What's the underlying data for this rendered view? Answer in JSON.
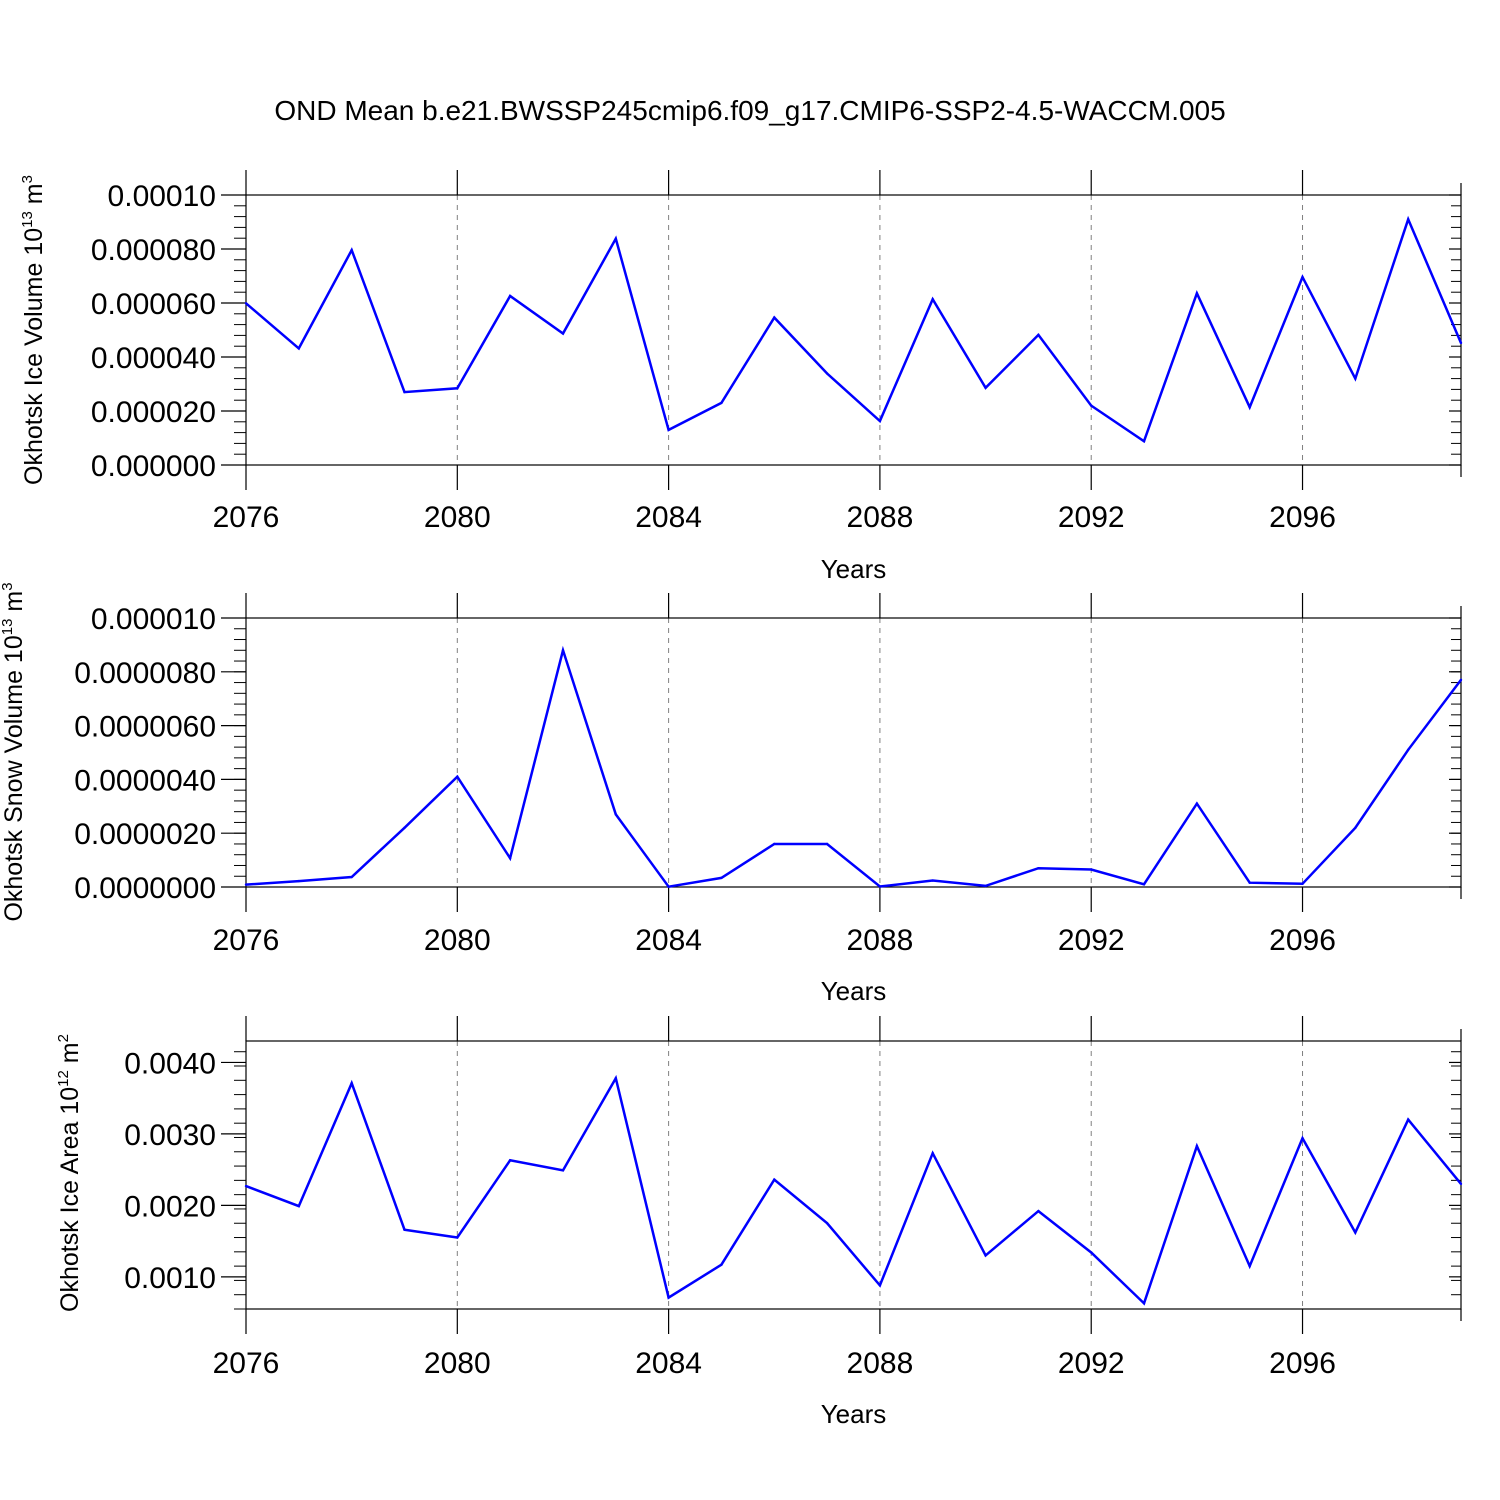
{
  "title": "OND Mean b.e21.BWSSP245cmip6.f09_g17.CMIP6-SSP2-4.5-WACCM.005",
  "colors": {
    "line": "#0000ff",
    "axis": "#000000",
    "grid": "#808080"
  },
  "chart_data": [
    {
      "type": "line",
      "name": "ice-volume",
      "xlabel": "Years",
      "ylabel": {
        "text": "Okhotsk Ice Volume 10",
        "sup": "13",
        "unit": " m",
        "unit_sup": "3"
      },
      "xlim": [
        2076,
        2099
      ],
      "ylim": [
        0,
        0.0001
      ],
      "x_ticks": [
        2076,
        2080,
        2084,
        2088,
        2092,
        2096
      ],
      "x_tick_labels": [
        "2076",
        "2080",
        "2084",
        "2088",
        "2092",
        "2096"
      ],
      "y_ticks": [
        0,
        2e-05,
        4e-05,
        6e-05,
        8e-05,
        0.0001
      ],
      "y_tick_labels": [
        "0.000000",
        "0.000020",
        "0.000040",
        "0.000060",
        "0.000080",
        "0.00010"
      ],
      "x": [
        2076,
        2077,
        2078,
        2079,
        2080,
        2081,
        2082,
        2083,
        2084,
        2085,
        2086,
        2087,
        2088,
        2089,
        2090,
        2091,
        2092,
        2093,
        2094,
        2095,
        2096,
        2097,
        2098,
        2099
      ],
      "values": [
        5.99e-05,
        4.32e-05,
        7.96e-05,
        2.7e-05,
        2.84e-05,
        6.26e-05,
        4.87e-05,
        8.38e-05,
        1.3e-05,
        2.3e-05,
        5.46e-05,
        3.39e-05,
        1.63e-05,
        6.14e-05,
        2.86e-05,
        4.82e-05,
        2.2e-05,
        8.8e-06,
        6.36e-05,
        2.14e-05,
        6.96e-05,
        3.2e-05,
        9.1e-05,
        4.52e-05
      ]
    },
    {
      "type": "line",
      "name": "snow-volume",
      "xlabel": "Years",
      "ylabel": {
        "text": "Okhotsk Snow Volume 10",
        "sup": "13",
        "unit": " m",
        "unit_sup": "3"
      },
      "xlim": [
        2076,
        2099
      ],
      "ylim": [
        0,
        1e-05
      ],
      "x_ticks": [
        2076,
        2080,
        2084,
        2088,
        2092,
        2096
      ],
      "x_tick_labels": [
        "2076",
        "2080",
        "2084",
        "2088",
        "2092",
        "2096"
      ],
      "y_ticks": [
        0,
        2e-06,
        4e-06,
        6e-06,
        8e-06,
        1e-05
      ],
      "y_tick_labels": [
        "0.0000000",
        "0.0000020",
        "0.0000040",
        "0.0000060",
        "0.0000080",
        "0.000010"
      ],
      "x": [
        2076,
        2077,
        2078,
        2079,
        2080,
        2081,
        2082,
        2083,
        2084,
        2085,
        2086,
        2087,
        2088,
        2089,
        2090,
        2091,
        2092,
        2093,
        2094,
        2095,
        2096,
        2097,
        2098,
        2099
      ],
      "values": [
        9e-08,
        2.2e-07,
        3.7e-07,
        2.2e-06,
        4.1e-06,
        1.07e-06,
        8.8e-06,
        2.7e-06,
        1e-08,
        3.4e-07,
        1.6e-06,
        1.6e-06,
        2e-08,
        2.4e-07,
        4e-08,
        7e-07,
        6.5e-07,
        1e-07,
        3.1e-06,
        1.6e-07,
        1.2e-07,
        2.2e-06,
        5.1e-06,
        7.7e-06
      ]
    },
    {
      "type": "line",
      "name": "ice-area",
      "xlabel": "Years",
      "ylabel": {
        "text": "Okhotsk Ice Area 10",
        "sup": "12",
        "unit": " m",
        "unit_sup": "2"
      },
      "xlim": [
        2076,
        2099
      ],
      "ylim": [
        0.00055,
        0.0043
      ],
      "x_ticks": [
        2076,
        2080,
        2084,
        2088,
        2092,
        2096
      ],
      "x_tick_labels": [
        "2076",
        "2080",
        "2084",
        "2088",
        "2092",
        "2096"
      ],
      "y_ticks": [
        0.001,
        0.002,
        0.003,
        0.004
      ],
      "y_tick_labels": [
        "0.0010",
        "0.0020",
        "0.0030",
        "0.0040"
      ],
      "x": [
        2076,
        2077,
        2078,
        2079,
        2080,
        2081,
        2082,
        2083,
        2084,
        2085,
        2086,
        2087,
        2088,
        2089,
        2090,
        2091,
        2092,
        2093,
        2094,
        2095,
        2096,
        2097,
        2098,
        2099
      ],
      "values": [
        0.00227,
        0.00199,
        0.00371,
        0.00166,
        0.00155,
        0.00263,
        0.00249,
        0.00378,
        0.00071,
        0.00117,
        0.00236,
        0.00175,
        0.00088,
        0.00273,
        0.0013,
        0.00192,
        0.00134,
        0.00063,
        0.00283,
        0.00115,
        0.00294,
        0.00162,
        0.0032,
        0.0023
      ]
    }
  ]
}
